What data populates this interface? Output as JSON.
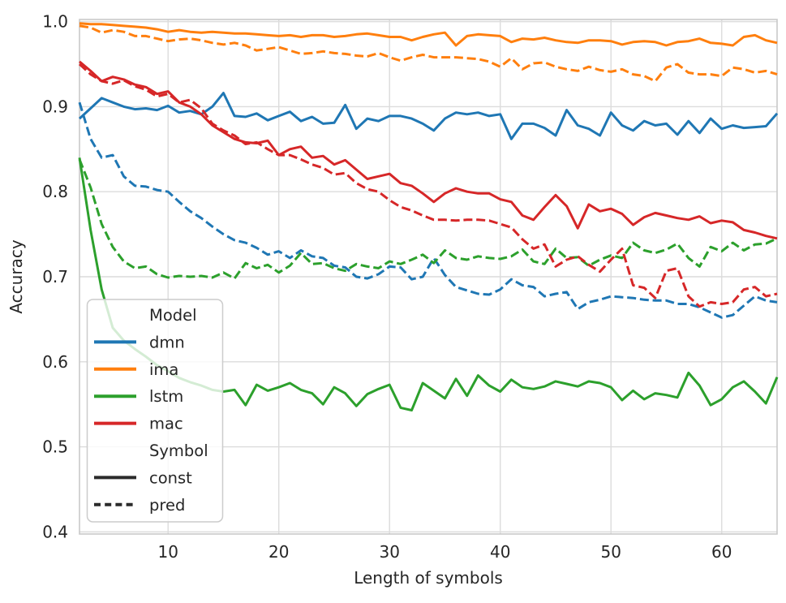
{
  "chart_data": {
    "type": "line",
    "title": "",
    "xlabel": "Length of symbols",
    "ylabel": "Accuracy",
    "xlim": [
      2,
      65
    ],
    "ylim": [
      0.3975,
      1.0025
    ],
    "xticks": [
      10,
      20,
      30,
      40,
      50,
      60
    ],
    "yticks": [
      0.4,
      0.5,
      0.6,
      0.7,
      0.8,
      0.9,
      1.0
    ],
    "grid": true,
    "legend_position": "lower-left",
    "grid_color": "#dcdcdc",
    "spine_color": "#c9c9c9",
    "text_color": "#262626",
    "palette": {
      "dmn": "#1f77b4",
      "ima": "#ff7f0e",
      "lstm": "#2ca02c",
      "mac": "#d62728"
    },
    "x": [
      2,
      3,
      4,
      5,
      6,
      7,
      8,
      9,
      10,
      11,
      12,
      13,
      14,
      15,
      16,
      17,
      18,
      19,
      20,
      21,
      22,
      23,
      24,
      25,
      26,
      27,
      28,
      29,
      30,
      31,
      32,
      33,
      34,
      35,
      36,
      37,
      38,
      39,
      40,
      41,
      42,
      43,
      44,
      45,
      46,
      47,
      48,
      49,
      50,
      51,
      52,
      53,
      54,
      55,
      56,
      57,
      58,
      59,
      60,
      61,
      62,
      63,
      64,
      65
    ],
    "series": [
      {
        "name": "dmn",
        "symbol": "const",
        "color": "#1f77b4",
        "dashed": false,
        "values": [
          0.886,
          0.898,
          0.91,
          0.905,
          0.9,
          0.897,
          0.898,
          0.896,
          0.901,
          0.893,
          0.895,
          0.891,
          0.9,
          0.916,
          0.889,
          0.888,
          0.892,
          0.884,
          0.889,
          0.894,
          0.883,
          0.888,
          0.88,
          0.881,
          0.902,
          0.874,
          0.886,
          0.883,
          0.889,
          0.889,
          0.886,
          0.88,
          0.872,
          0.886,
          0.893,
          0.891,
          0.893,
          0.889,
          0.891,
          0.862,
          0.88,
          0.88,
          0.875,
          0.866,
          0.896,
          0.878,
          0.874,
          0.866,
          0.893,
          0.878,
          0.872,
          0.883,
          0.878,
          0.88,
          0.867,
          0.883,
          0.869,
          0.886,
          0.874,
          0.878,
          0.875,
          0.876,
          0.877,
          0.892
        ]
      },
      {
        "name": "dmn",
        "symbol": "pred",
        "color": "#1f77b4",
        "dashed": true,
        "values": [
          0.905,
          0.862,
          0.84,
          0.843,
          0.818,
          0.807,
          0.806,
          0.802,
          0.8,
          0.788,
          0.777,
          0.769,
          0.759,
          0.75,
          0.743,
          0.74,
          0.734,
          0.726,
          0.73,
          0.722,
          0.731,
          0.724,
          0.722,
          0.713,
          0.711,
          0.7,
          0.698,
          0.703,
          0.712,
          0.711,
          0.697,
          0.7,
          0.722,
          0.702,
          0.688,
          0.684,
          0.68,
          0.679,
          0.685,
          0.697,
          0.69,
          0.688,
          0.677,
          0.68,
          0.682,
          0.662,
          0.67,
          0.673,
          0.677,
          0.676,
          0.675,
          0.673,
          0.672,
          0.672,
          0.668,
          0.668,
          0.664,
          0.658,
          0.652,
          0.655,
          0.666,
          0.677,
          0.672,
          0.67
        ]
      },
      {
        "name": "ima",
        "symbol": "const",
        "color": "#ff7f0e",
        "dashed": false,
        "values": [
          0.998,
          0.997,
          0.997,
          0.996,
          0.995,
          0.994,
          0.993,
          0.991,
          0.988,
          0.99,
          0.988,
          0.987,
          0.988,
          0.987,
          0.986,
          0.986,
          0.985,
          0.984,
          0.983,
          0.984,
          0.982,
          0.984,
          0.984,
          0.982,
          0.983,
          0.985,
          0.986,
          0.984,
          0.982,
          0.982,
          0.978,
          0.982,
          0.985,
          0.987,
          0.972,
          0.983,
          0.985,
          0.984,
          0.983,
          0.976,
          0.98,
          0.979,
          0.981,
          0.978,
          0.976,
          0.975,
          0.978,
          0.978,
          0.977,
          0.973,
          0.976,
          0.977,
          0.976,
          0.972,
          0.976,
          0.977,
          0.98,
          0.975,
          0.974,
          0.972,
          0.982,
          0.984,
          0.978,
          0.975
        ]
      },
      {
        "name": "ima",
        "symbol": "pred",
        "color": "#ff7f0e",
        "dashed": true,
        "values": [
          0.995,
          0.993,
          0.987,
          0.99,
          0.988,
          0.983,
          0.983,
          0.98,
          0.977,
          0.979,
          0.98,
          0.978,
          0.975,
          0.973,
          0.975,
          0.972,
          0.966,
          0.968,
          0.97,
          0.966,
          0.962,
          0.963,
          0.965,
          0.963,
          0.962,
          0.96,
          0.959,
          0.963,
          0.958,
          0.954,
          0.958,
          0.961,
          0.958,
          0.958,
          0.958,
          0.957,
          0.956,
          0.953,
          0.947,
          0.957,
          0.944,
          0.951,
          0.952,
          0.947,
          0.944,
          0.942,
          0.947,
          0.943,
          0.941,
          0.944,
          0.938,
          0.936,
          0.93,
          0.946,
          0.95,
          0.94,
          0.938,
          0.938,
          0.936,
          0.946,
          0.944,
          0.94,
          0.942,
          0.938
        ]
      },
      {
        "name": "lstm",
        "symbol": "const",
        "color": "#2ca02c",
        "dashed": false,
        "values": [
          0.84,
          0.755,
          0.685,
          0.64,
          0.625,
          0.615,
          0.606,
          0.596,
          0.589,
          0.581,
          0.576,
          0.572,
          0.567,
          0.565,
          0.567,
          0.549,
          0.573,
          0.566,
          0.57,
          0.575,
          0.567,
          0.563,
          0.55,
          0.57,
          0.563,
          0.548,
          0.562,
          0.568,
          0.573,
          0.546,
          0.543,
          0.575,
          0.566,
          0.557,
          0.58,
          0.56,
          0.584,
          0.572,
          0.565,
          0.579,
          0.57,
          0.568,
          0.571,
          0.577,
          0.574,
          0.571,
          0.577,
          0.575,
          0.57,
          0.555,
          0.566,
          0.556,
          0.563,
          0.561,
          0.558,
          0.587,
          0.572,
          0.549,
          0.556,
          0.57,
          0.577,
          0.565,
          0.551,
          0.582
        ]
      },
      {
        "name": "lstm",
        "symbol": "pred",
        "color": "#2ca02c",
        "dashed": true,
        "values": [
          0.838,
          0.805,
          0.762,
          0.735,
          0.718,
          0.71,
          0.712,
          0.703,
          0.699,
          0.701,
          0.7,
          0.701,
          0.699,
          0.705,
          0.698,
          0.716,
          0.71,
          0.714,
          0.705,
          0.713,
          0.728,
          0.715,
          0.716,
          0.71,
          0.707,
          0.715,
          0.712,
          0.71,
          0.718,
          0.715,
          0.72,
          0.726,
          0.716,
          0.731,
          0.722,
          0.72,
          0.724,
          0.722,
          0.721,
          0.724,
          0.732,
          0.718,
          0.715,
          0.733,
          0.722,
          0.723,
          0.713,
          0.72,
          0.725,
          0.722,
          0.74,
          0.731,
          0.728,
          0.732,
          0.739,
          0.722,
          0.712,
          0.735,
          0.73,
          0.74,
          0.731,
          0.738,
          0.739,
          0.745
        ]
      },
      {
        "name": "mac",
        "symbol": "const",
        "color": "#d62728",
        "dashed": false,
        "values": [
          0.953,
          0.942,
          0.93,
          0.935,
          0.932,
          0.926,
          0.923,
          0.915,
          0.918,
          0.905,
          0.9,
          0.891,
          0.878,
          0.87,
          0.862,
          0.858,
          0.857,
          0.86,
          0.843,
          0.85,
          0.853,
          0.84,
          0.842,
          0.832,
          0.837,
          0.826,
          0.815,
          0.818,
          0.821,
          0.81,
          0.807,
          0.798,
          0.788,
          0.798,
          0.804,
          0.8,
          0.798,
          0.798,
          0.791,
          0.788,
          0.772,
          0.767,
          0.782,
          0.796,
          0.783,
          0.757,
          0.785,
          0.777,
          0.78,
          0.774,
          0.761,
          0.77,
          0.775,
          0.772,
          0.769,
          0.767,
          0.771,
          0.763,
          0.766,
          0.764,
          0.755,
          0.752,
          0.748,
          0.745
        ]
      },
      {
        "name": "mac",
        "symbol": "pred",
        "color": "#d62728",
        "dashed": true,
        "values": [
          0.95,
          0.938,
          0.93,
          0.927,
          0.931,
          0.924,
          0.92,
          0.912,
          0.915,
          0.905,
          0.908,
          0.898,
          0.88,
          0.872,
          0.866,
          0.856,
          0.858,
          0.85,
          0.843,
          0.843,
          0.838,
          0.832,
          0.828,
          0.82,
          0.822,
          0.81,
          0.803,
          0.8,
          0.79,
          0.782,
          0.778,
          0.772,
          0.767,
          0.767,
          0.766,
          0.767,
          0.767,
          0.766,
          0.762,
          0.758,
          0.744,
          0.733,
          0.738,
          0.712,
          0.72,
          0.724,
          0.714,
          0.706,
          0.72,
          0.733,
          0.69,
          0.687,
          0.675,
          0.707,
          0.71,
          0.677,
          0.665,
          0.67,
          0.668,
          0.67,
          0.685,
          0.688,
          0.677,
          0.68
        ]
      }
    ],
    "legend": {
      "model_header": "Model",
      "models": [
        {
          "label": "dmn",
          "color": "#1f77b4"
        },
        {
          "label": "ima",
          "color": "#ff7f0e"
        },
        {
          "label": "lstm",
          "color": "#2ca02c"
        },
        {
          "label": "mac",
          "color": "#d62728"
        }
      ],
      "symbol_header": "Symbol",
      "symbols": [
        {
          "label": "const",
          "dashed": false
        },
        {
          "label": "pred",
          "dashed": true
        }
      ],
      "handle_color": "#2b2b2b"
    }
  }
}
